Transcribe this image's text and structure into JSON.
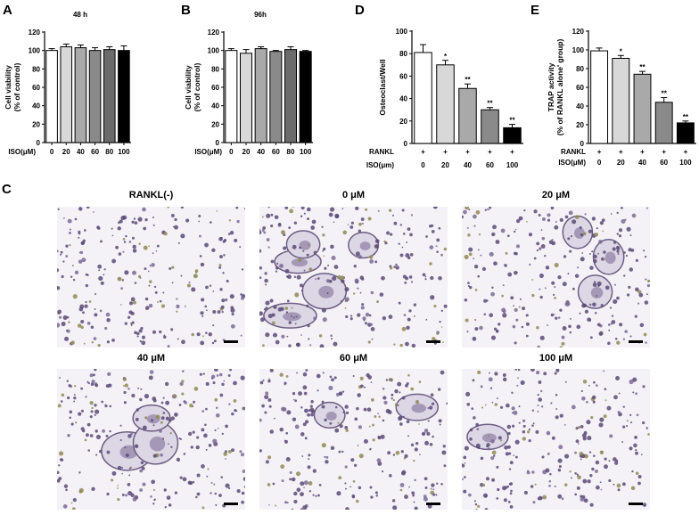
{
  "panel_letters": {
    "A": "A",
    "B": "B",
    "C": "C",
    "D": "D",
    "E": "E"
  },
  "colors": [
    "#ffffff",
    "#d8d8d8",
    "#a9a9a9",
    "#8a8a8a",
    "#6b6b6b",
    "#000000"
  ],
  "chart_data": [
    {
      "id": "A",
      "type": "bar",
      "title": "48 h",
      "ylabel": [
        "Cell viability",
        "(% of control)"
      ],
      "xlabel": "ISO(μM)",
      "categories": [
        "0",
        "20",
        "40",
        "60",
        "80",
        "100"
      ],
      "values": [
        100,
        104,
        103,
        100,
        101,
        100
      ],
      "errors": [
        2,
        3,
        3,
        3,
        3,
        5
      ],
      "ylim": [
        0,
        120
      ],
      "yticks": [
        0,
        20,
        40,
        60,
        80,
        100,
        120
      ],
      "significance": [
        "",
        "",
        "",
        "",
        "",
        ""
      ]
    },
    {
      "id": "B",
      "type": "bar",
      "title": "96h",
      "ylabel": [
        "Cell viability",
        "(% of control)"
      ],
      "xlabel": "ISO(μM)",
      "categories": [
        "0",
        "20",
        "40",
        "60",
        "80",
        "100"
      ],
      "values": [
        100,
        97,
        102,
        99,
        101,
        99
      ],
      "errors": [
        2,
        4,
        2,
        1,
        3,
        1
      ],
      "ylim": [
        0,
        120
      ],
      "yticks": [
        0,
        20,
        40,
        60,
        80,
        100,
        120
      ],
      "significance": [
        "",
        "",
        "",
        "",
        "",
        ""
      ]
    },
    {
      "id": "D",
      "type": "bar",
      "title": "",
      "ylabel": [
        "Osteoclast/Well"
      ],
      "row_labels": [
        "RANKL",
        "ISO(μm)"
      ],
      "rankl": [
        "+",
        "+",
        "+",
        "+",
        "+"
      ],
      "categories": [
        "0",
        "20",
        "40",
        "60",
        "100"
      ],
      "values": [
        81,
        70,
        49,
        30,
        14
      ],
      "errors": [
        7,
        4,
        4,
        2,
        3
      ],
      "ylim": [
        0,
        100
      ],
      "yticks": [
        0,
        20,
        40,
        60,
        80,
        100
      ],
      "significance": [
        "",
        "*",
        "**",
        "**",
        "**"
      ]
    },
    {
      "id": "E",
      "type": "bar",
      "title": "",
      "ylabel": [
        "TRAP activity",
        "(% of RANKL alone' group)"
      ],
      "row_labels": [
        "RANKL",
        "ISO(μM)"
      ],
      "rankl": [
        "+",
        "+",
        "+",
        "+",
        "+"
      ],
      "categories": [
        "0",
        "20",
        "40",
        "60",
        "100"
      ],
      "values": [
        99,
        91,
        74,
        44,
        22
      ],
      "errors": [
        3,
        3,
        3,
        5,
        2
      ],
      "ylim": [
        0,
        120
      ],
      "yticks": [
        0,
        20,
        40,
        60,
        80,
        100,
        120
      ],
      "significance": [
        "",
        "*",
        "**",
        "**",
        "**"
      ]
    }
  ],
  "micrographs": [
    {
      "label": "RANKL(-)",
      "osteoclasts": 0
    },
    {
      "label": "0 μM",
      "osteoclasts": 5
    },
    {
      "label": "20 μM",
      "osteoclasts": 3
    },
    {
      "label": "40 μM",
      "osteoclasts": 3
    },
    {
      "label": "60 μM",
      "osteoclasts": 2
    },
    {
      "label": "100 μM",
      "osteoclasts": 1
    }
  ]
}
